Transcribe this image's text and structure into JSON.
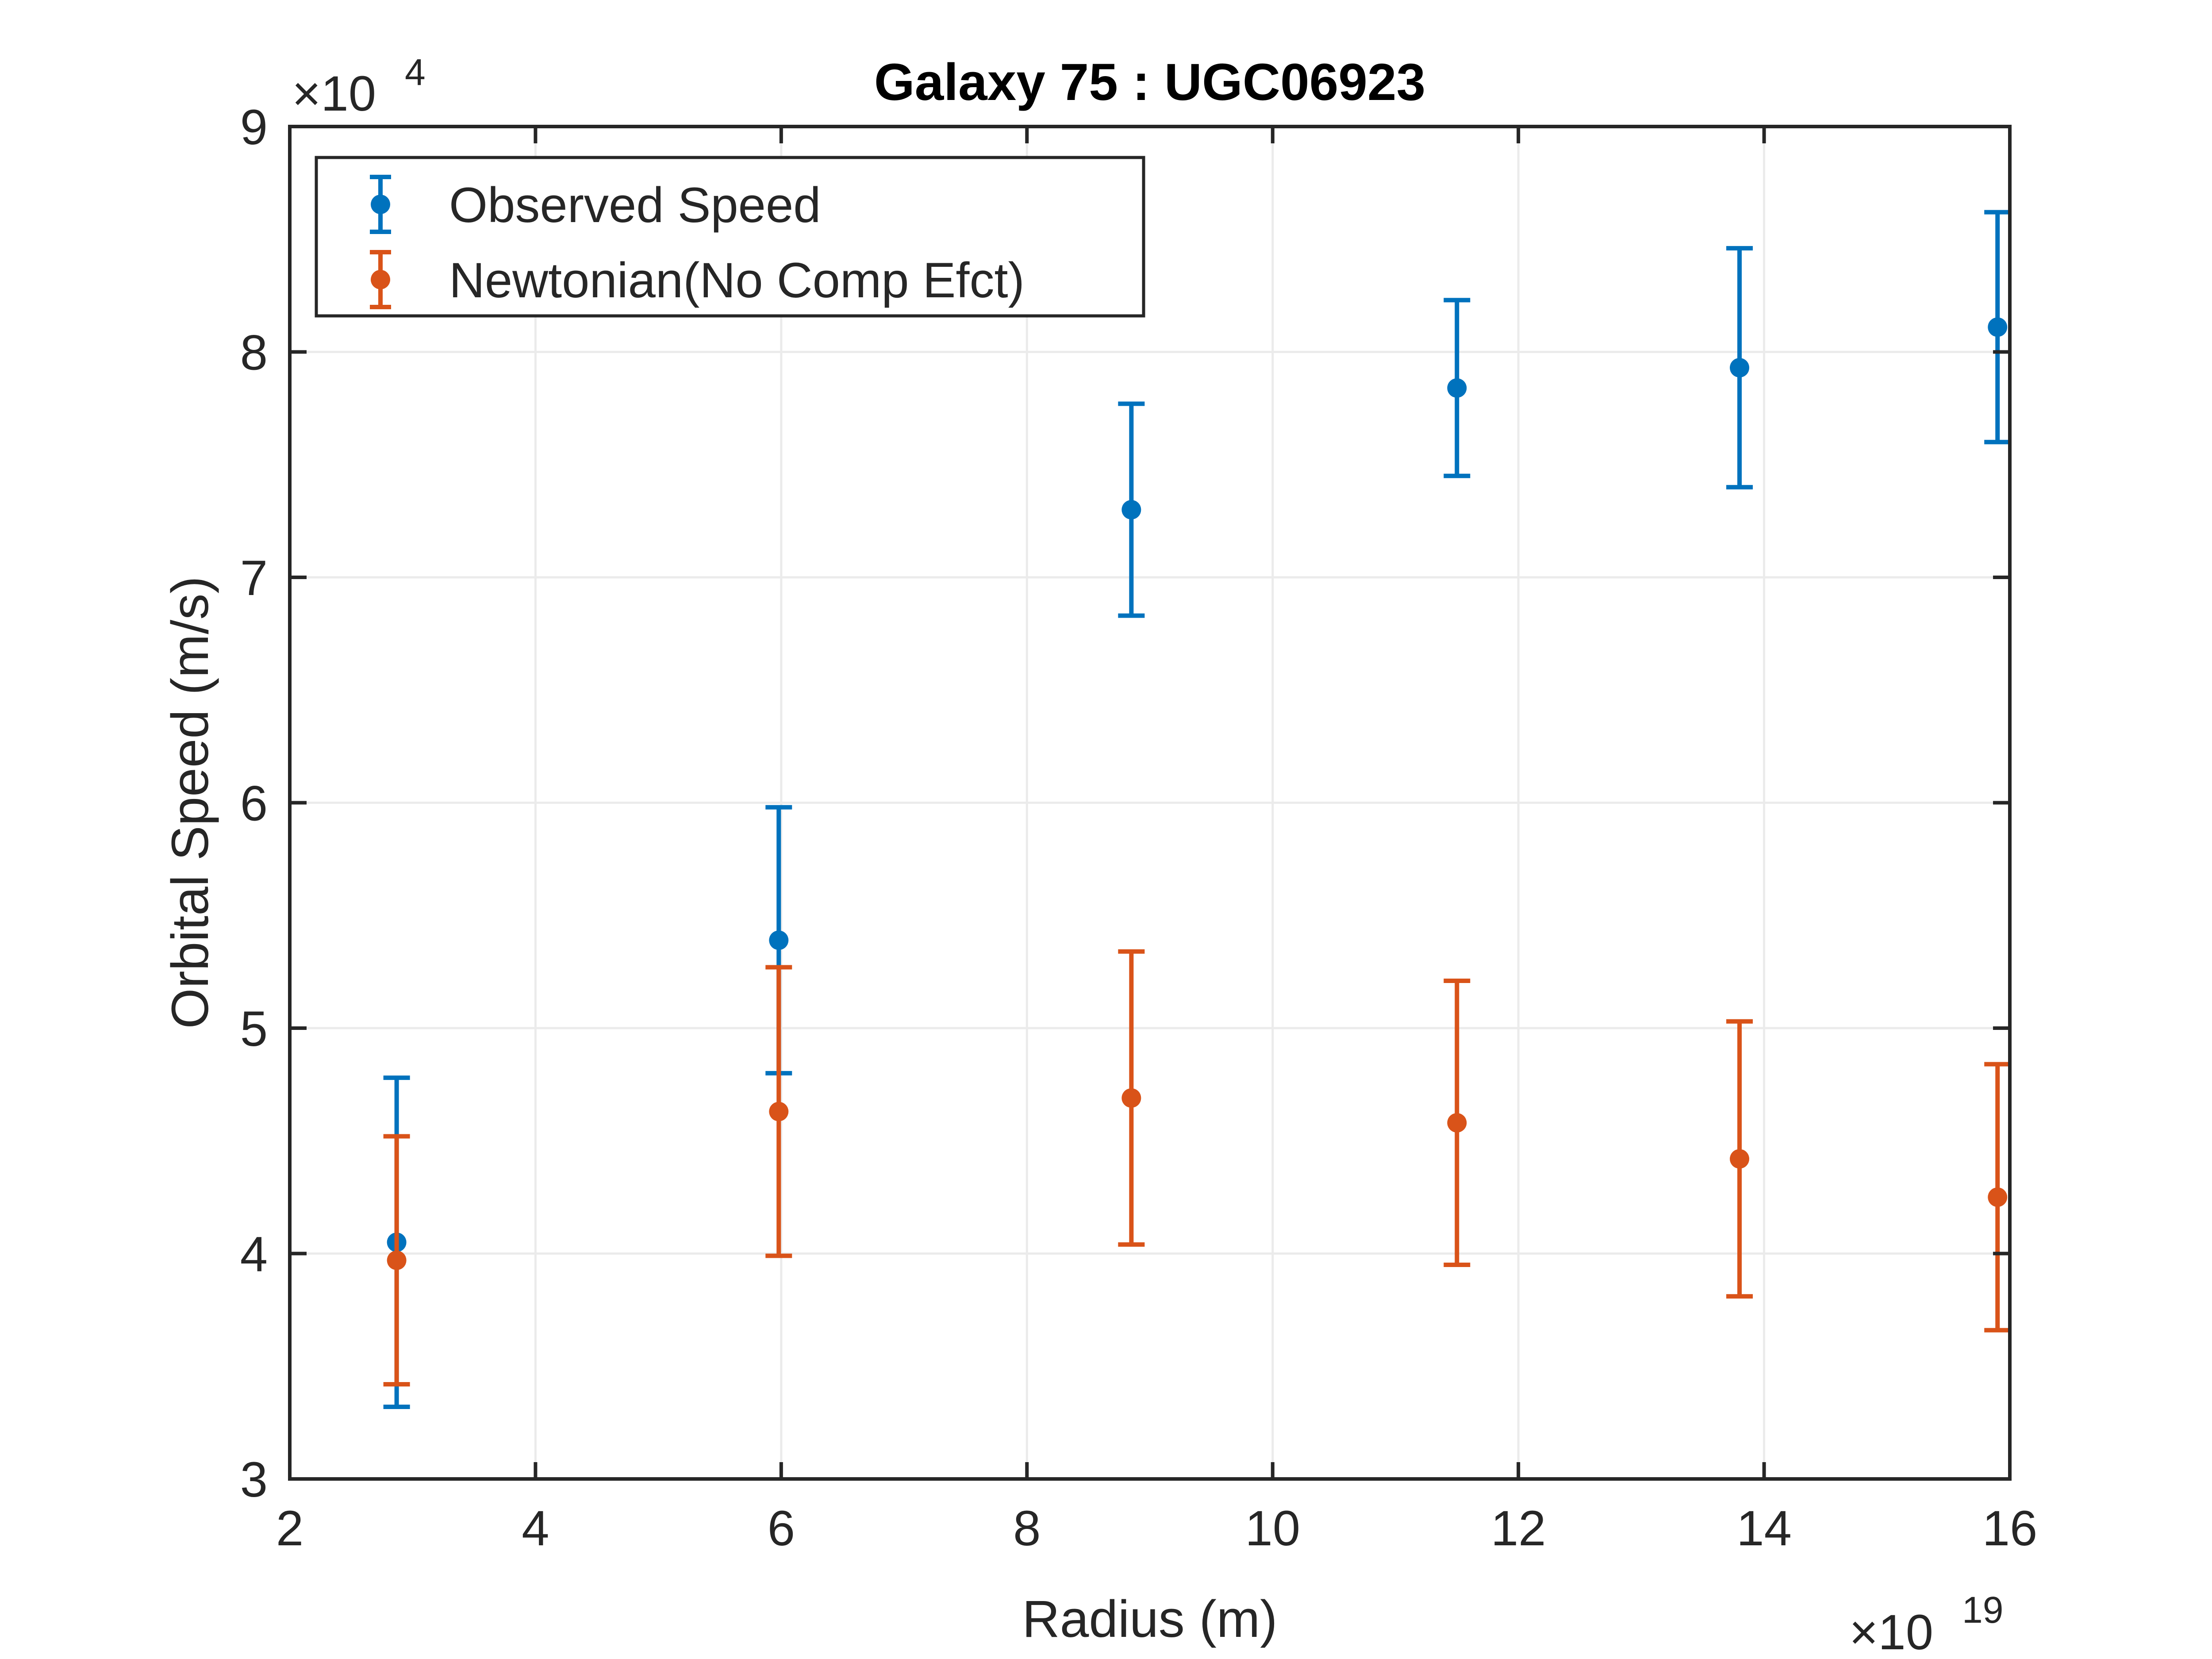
{
  "chart_data": {
    "type": "scatter",
    "title": "Galaxy 75 : UGC06923",
    "xlabel": "Radius (m)",
    "ylabel": "Orbital Speed (m/s)",
    "x_exponent_label": "×10",
    "x_exponent": "19",
    "y_exponent_label": "×10",
    "y_exponent": "4",
    "xlim": [
      2,
      16
    ],
    "ylim": [
      3,
      9
    ],
    "x_ticks": [
      2,
      4,
      6,
      8,
      10,
      12,
      14,
      16
    ],
    "y_ticks": [
      3,
      4,
      5,
      6,
      7,
      8,
      9
    ],
    "x_tick_labels": [
      "2",
      "4",
      "6",
      "8",
      "10",
      "12",
      "14",
      "16"
    ],
    "y_tick_labels": [
      "3",
      "4",
      "5",
      "6",
      "7",
      "8",
      "9"
    ],
    "grid": true,
    "legend_position": "top-left",
    "series": [
      {
        "name": "Observed Speed",
        "color": "#0072BD",
        "x": [
          2.87,
          5.98,
          8.85,
          11.5,
          13.8,
          15.9
        ],
        "y": [
          4.05,
          5.39,
          7.3,
          7.84,
          7.93,
          8.11
        ],
        "err": [
          0.73,
          0.59,
          0.47,
          0.39,
          0.53,
          0.51
        ]
      },
      {
        "name": "Newtonian(No Comp Efct)",
        "color": "#D95319",
        "x": [
          2.87,
          5.98,
          8.85,
          11.5,
          13.8,
          15.9
        ],
        "y": [
          3.97,
          4.63,
          4.69,
          4.58,
          4.42,
          4.25
        ],
        "err": [
          0.55,
          0.64,
          0.65,
          0.63,
          0.61,
          0.59
        ]
      }
    ]
  }
}
